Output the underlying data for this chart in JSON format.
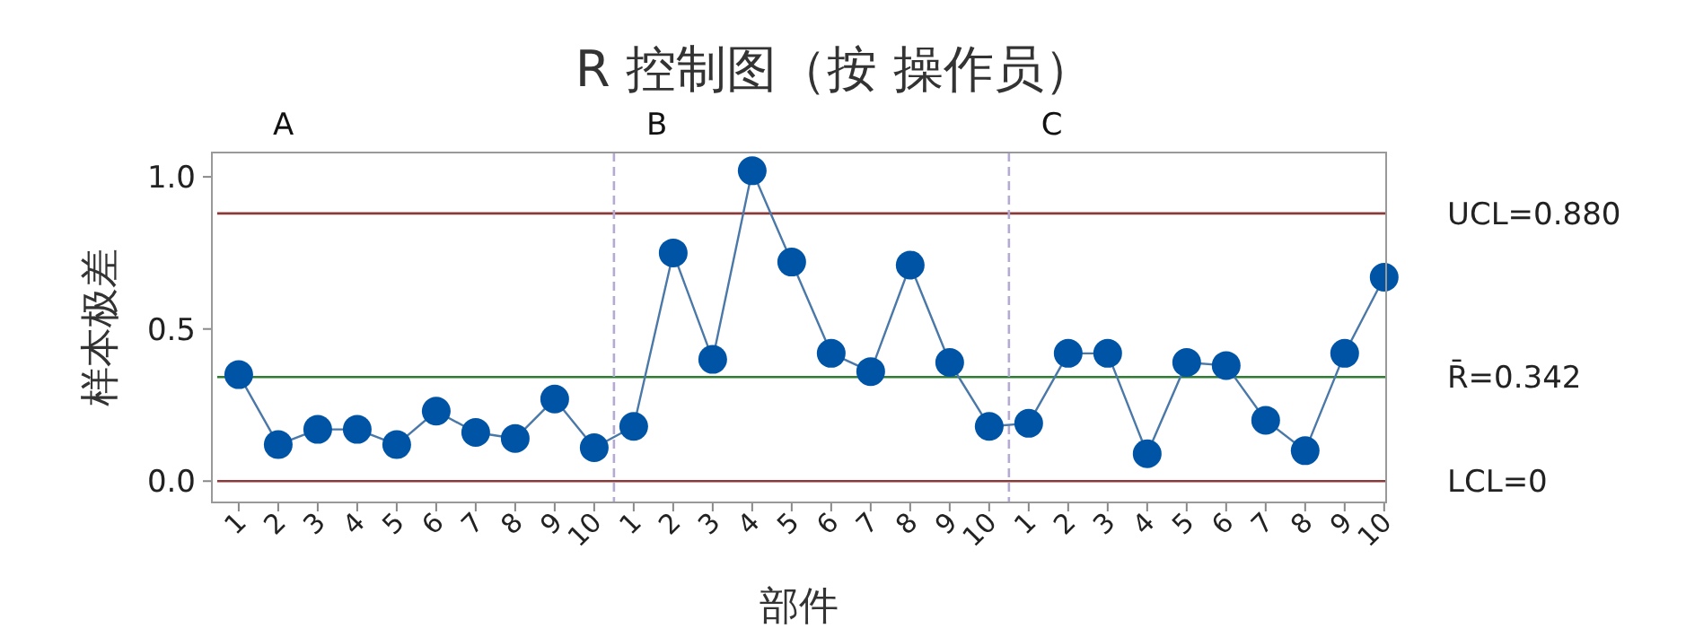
{
  "chart_data": {
    "type": "line",
    "title": "R 控制图（按 操作员）",
    "xlabel": "部件",
    "ylabel": "样本极差",
    "annotations": [
      "A",
      "B",
      "C"
    ],
    "categories": [
      "1",
      "2",
      "3",
      "4",
      "5",
      "6",
      "7",
      "8",
      "9",
      "10",
      "1",
      "2",
      "3",
      "4",
      "5",
      "6",
      "7",
      "8",
      "9",
      "10",
      "1",
      "2",
      "3",
      "4",
      "5",
      "6",
      "7",
      "8",
      "9",
      "10"
    ],
    "series": [
      {
        "color": "#0054a6",
        "values": [
          0.35,
          0.12,
          0.17,
          0.17,
          0.12,
          0.23,
          0.16,
          0.14,
          0.27,
          0.11,
          0.18,
          0.75,
          0.4,
          1.02,
          0.72,
          0.42,
          0.36,
          0.71,
          0.39,
          0.18,
          0.19,
          0.42,
          0.42,
          0.09,
          0.39,
          0.38,
          0.2,
          0.1,
          0.42,
          0.67
        ]
      }
    ],
    "ylim": [
      -0.07,
      1.08
    ],
    "yticks": [
      {
        "value": 0,
        "label": "0.0"
      },
      {
        "value": 0.5,
        "label": "0.5"
      },
      {
        "value": 1,
        "label": "1.0"
      }
    ],
    "ref_lines": [
      {
        "axis": "y",
        "value": 0.88,
        "label": "UCL=0.880",
        "color": "#8b3a3a"
      },
      {
        "axis": "y",
        "value": 0.342,
        "label": "R̄=0.342",
        "color": "#2e7d32"
      },
      {
        "axis": "y",
        "value": 0,
        "label": "LCL=0",
        "color": "#8b3a3a"
      }
    ],
    "marker": "circle",
    "line_style": "solid"
  }
}
